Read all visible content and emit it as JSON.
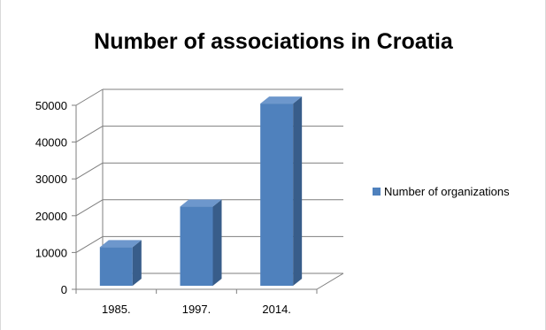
{
  "chart_data": {
    "type": "bar",
    "title": "Number of associations in Croatia",
    "categories": [
      "1985.",
      "1997.",
      "2014."
    ],
    "series": [
      {
        "name": "Number of organizations",
        "values": [
          10500,
          21500,
          49500
        ]
      }
    ],
    "yticks": [
      "0",
      "10000",
      "20000",
      "30000",
      "40000",
      "50000"
    ],
    "ylim": [
      0,
      50000
    ],
    "grid": true,
    "legend_position": "right",
    "colors": {
      "bar_front": "#4f81bd",
      "bar_side": "#385d8a",
      "bar_top": "#6d97cc",
      "grid": "#7f7f7f"
    }
  }
}
